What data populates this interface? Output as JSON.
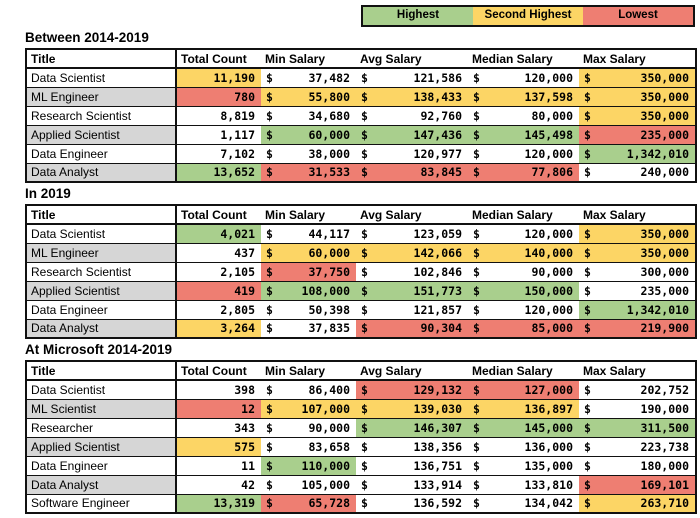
{
  "legend": {
    "items": [
      {
        "key": "highest",
        "label": "Highest",
        "color": "#a9cf8d"
      },
      {
        "key": "second_highest",
        "label": "Second Highest",
        "color": "#fcd565"
      },
      {
        "key": "lowest",
        "label": "Lowest",
        "color": "#ee7e72"
      }
    ]
  },
  "highlight_colors": {
    "highest": "#a9cf8d",
    "second_highest": "#fcd565",
    "lowest": "#ee7e72"
  },
  "currency_symbol": "$",
  "columns": [
    "Title",
    "Total Count",
    "Min Salary",
    "Avg Salary",
    "Median Salary",
    "Max Salary"
  ],
  "sections": [
    {
      "heading": "Between 2014-2019",
      "rows": [
        {
          "title": "Data Scientist",
          "cells": [
            {
              "v": "11,190",
              "hl": "second_highest"
            },
            {
              "v": "37,482",
              "hl": ""
            },
            {
              "v": "121,586",
              "hl": ""
            },
            {
              "v": "120,000",
              "hl": ""
            },
            {
              "v": "350,000",
              "hl": "second_highest"
            }
          ]
        },
        {
          "title": "ML Engineer",
          "cells": [
            {
              "v": "780",
              "hl": "lowest"
            },
            {
              "v": "55,800",
              "hl": "second_highest"
            },
            {
              "v": "138,433",
              "hl": "second_highest"
            },
            {
              "v": "137,598",
              "hl": "second_highest"
            },
            {
              "v": "350,000",
              "hl": "second_highest"
            }
          ]
        },
        {
          "title": "Research Scientist",
          "cells": [
            {
              "v": "8,819",
              "hl": ""
            },
            {
              "v": "34,680",
              "hl": ""
            },
            {
              "v": "92,760",
              "hl": ""
            },
            {
              "v": "80,000",
              "hl": ""
            },
            {
              "v": "350,000",
              "hl": "second_highest"
            }
          ]
        },
        {
          "title": "Applied Scientist",
          "cells": [
            {
              "v": "1,117",
              "hl": ""
            },
            {
              "v": "60,000",
              "hl": "highest"
            },
            {
              "v": "147,436",
              "hl": "highest"
            },
            {
              "v": "145,498",
              "hl": "highest"
            },
            {
              "v": "235,000",
              "hl": "lowest"
            }
          ]
        },
        {
          "title": "Data Engineer",
          "cells": [
            {
              "v": "7,102",
              "hl": ""
            },
            {
              "v": "38,000",
              "hl": ""
            },
            {
              "v": "120,977",
              "hl": ""
            },
            {
              "v": "120,000",
              "hl": ""
            },
            {
              "v": "1,342,010",
              "hl": "highest"
            }
          ]
        },
        {
          "title": "Data Analyst",
          "cells": [
            {
              "v": "13,652",
              "hl": "highest"
            },
            {
              "v": "31,533",
              "hl": "lowest"
            },
            {
              "v": "83,845",
              "hl": "lowest"
            },
            {
              "v": "77,806",
              "hl": "lowest"
            },
            {
              "v": "240,000",
              "hl": ""
            }
          ]
        }
      ]
    },
    {
      "heading": "In 2019",
      "rows": [
        {
          "title": "Data Scientist",
          "cells": [
            {
              "v": "4,021",
              "hl": "highest"
            },
            {
              "v": "44,117",
              "hl": ""
            },
            {
              "v": "123,059",
              "hl": ""
            },
            {
              "v": "120,000",
              "hl": ""
            },
            {
              "v": "350,000",
              "hl": "second_highest"
            }
          ]
        },
        {
          "title": "ML Engineer",
          "cells": [
            {
              "v": "437",
              "hl": ""
            },
            {
              "v": "60,000",
              "hl": "second_highest"
            },
            {
              "v": "142,066",
              "hl": "second_highest"
            },
            {
              "v": "140,000",
              "hl": "second_highest"
            },
            {
              "v": "350,000",
              "hl": "second_highest"
            }
          ]
        },
        {
          "title": "Research Scientist",
          "cells": [
            {
              "v": "2,105",
              "hl": ""
            },
            {
              "v": "37,750",
              "hl": "lowest"
            },
            {
              "v": "102,846",
              "hl": ""
            },
            {
              "v": "90,000",
              "hl": ""
            },
            {
              "v": "300,000",
              "hl": ""
            }
          ]
        },
        {
          "title": "Applied Scientist",
          "cells": [
            {
              "v": "419",
              "hl": "lowest"
            },
            {
              "v": "108,000",
              "hl": "highest"
            },
            {
              "v": "151,773",
              "hl": "highest"
            },
            {
              "v": "150,000",
              "hl": "highest"
            },
            {
              "v": "235,000",
              "hl": ""
            }
          ]
        },
        {
          "title": "Data Engineer",
          "cells": [
            {
              "v": "2,805",
              "hl": ""
            },
            {
              "v": "50,398",
              "hl": ""
            },
            {
              "v": "121,857",
              "hl": ""
            },
            {
              "v": "120,000",
              "hl": ""
            },
            {
              "v": "1,342,010",
              "hl": "highest"
            }
          ]
        },
        {
          "title": "Data Analyst",
          "cells": [
            {
              "v": "3,264",
              "hl": "second_highest"
            },
            {
              "v": "37,835",
              "hl": ""
            },
            {
              "v": "90,304",
              "hl": "lowest"
            },
            {
              "v": "85,000",
              "hl": "lowest"
            },
            {
              "v": "219,900",
              "hl": "lowest"
            }
          ]
        }
      ]
    },
    {
      "heading": "At Microsoft 2014-2019",
      "rows": [
        {
          "title": "Data Scientist",
          "cells": [
            {
              "v": "398",
              "hl": ""
            },
            {
              "v": "86,400",
              "hl": ""
            },
            {
              "v": "129,132",
              "hl": "lowest"
            },
            {
              "v": "127,000",
              "hl": "lowest"
            },
            {
              "v": "202,752",
              "hl": ""
            }
          ]
        },
        {
          "title": "ML Scientist",
          "cells": [
            {
              "v": "12",
              "hl": "lowest"
            },
            {
              "v": "107,000",
              "hl": "second_highest"
            },
            {
              "v": "139,030",
              "hl": "second_highest"
            },
            {
              "v": "136,897",
              "hl": "second_highest"
            },
            {
              "v": "190,000",
              "hl": ""
            }
          ]
        },
        {
          "title": "Researcher",
          "cells": [
            {
              "v": "343",
              "hl": ""
            },
            {
              "v": "90,000",
              "hl": ""
            },
            {
              "v": "146,307",
              "hl": "highest"
            },
            {
              "v": "145,000",
              "hl": "highest"
            },
            {
              "v": "311,500",
              "hl": "highest"
            }
          ]
        },
        {
          "title": "Applied Scientist",
          "cells": [
            {
              "v": "575",
              "hl": "second_highest"
            },
            {
              "v": "83,658",
              "hl": ""
            },
            {
              "v": "138,356",
              "hl": ""
            },
            {
              "v": "136,000",
              "hl": ""
            },
            {
              "v": "223,738",
              "hl": ""
            }
          ]
        },
        {
          "title": "Data Engineer",
          "cells": [
            {
              "v": "11",
              "hl": ""
            },
            {
              "v": "110,000",
              "hl": "highest"
            },
            {
              "v": "136,751",
              "hl": ""
            },
            {
              "v": "135,000",
              "hl": ""
            },
            {
              "v": "180,000",
              "hl": ""
            }
          ]
        },
        {
          "title": "Data Analyst",
          "cells": [
            {
              "v": "42",
              "hl": ""
            },
            {
              "v": "105,000",
              "hl": ""
            },
            {
              "v": "133,914",
              "hl": ""
            },
            {
              "v": "133,810",
              "hl": ""
            },
            {
              "v": "169,101",
              "hl": "lowest"
            }
          ]
        },
        {
          "title": "Software Engineer",
          "cells": [
            {
              "v": "13,319",
              "hl": "highest"
            },
            {
              "v": "65,728",
              "hl": "lowest"
            },
            {
              "v": "136,592",
              "hl": ""
            },
            {
              "v": "134,042",
              "hl": ""
            },
            {
              "v": "263,710",
              "hl": "second_highest"
            }
          ]
        }
      ]
    }
  ]
}
